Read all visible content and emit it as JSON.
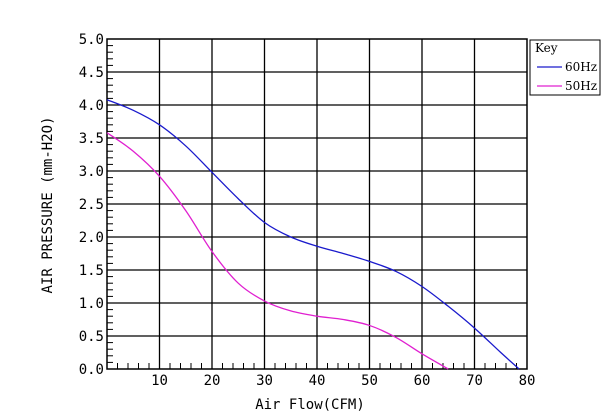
{
  "chart_data": {
    "type": "line",
    "xlabel": "Air Flow(CFM)",
    "ylabel": "AIR PRESSURE (mm-H2O)",
    "xlim": [
      0,
      80
    ],
    "ylim": [
      0,
      5
    ],
    "xticks": [
      10,
      20,
      30,
      40,
      50,
      60,
      70,
      80
    ],
    "yticks": [
      "0.0",
      "0.5",
      "1.0",
      "1.5",
      "2.0",
      "2.5",
      "3.0",
      "3.5",
      "4.0",
      "4.5",
      "5.0"
    ],
    "grid": true,
    "legend": {
      "title": "Key",
      "placement": "top-right-outside"
    },
    "series": [
      {
        "name": "60Hz",
        "color": "#1a1acc",
        "x": [
          0,
          5,
          10,
          15,
          20,
          25,
          30,
          35,
          40,
          45,
          50,
          55,
          60,
          65,
          70,
          75,
          78.5
        ],
        "y": [
          4.08,
          3.92,
          3.7,
          3.38,
          2.98,
          2.58,
          2.22,
          2.0,
          1.86,
          1.75,
          1.63,
          1.48,
          1.25,
          0.95,
          0.62,
          0.25,
          0.0
        ]
      },
      {
        "name": "50Hz",
        "color": "#e020d0",
        "x": [
          0,
          5,
          10,
          15,
          20,
          25,
          30,
          35,
          40,
          45,
          50,
          55,
          60,
          65
        ],
        "y": [
          3.58,
          3.3,
          2.92,
          2.4,
          1.78,
          1.3,
          1.03,
          0.88,
          0.8,
          0.75,
          0.66,
          0.48,
          0.23,
          0.0
        ]
      }
    ]
  }
}
